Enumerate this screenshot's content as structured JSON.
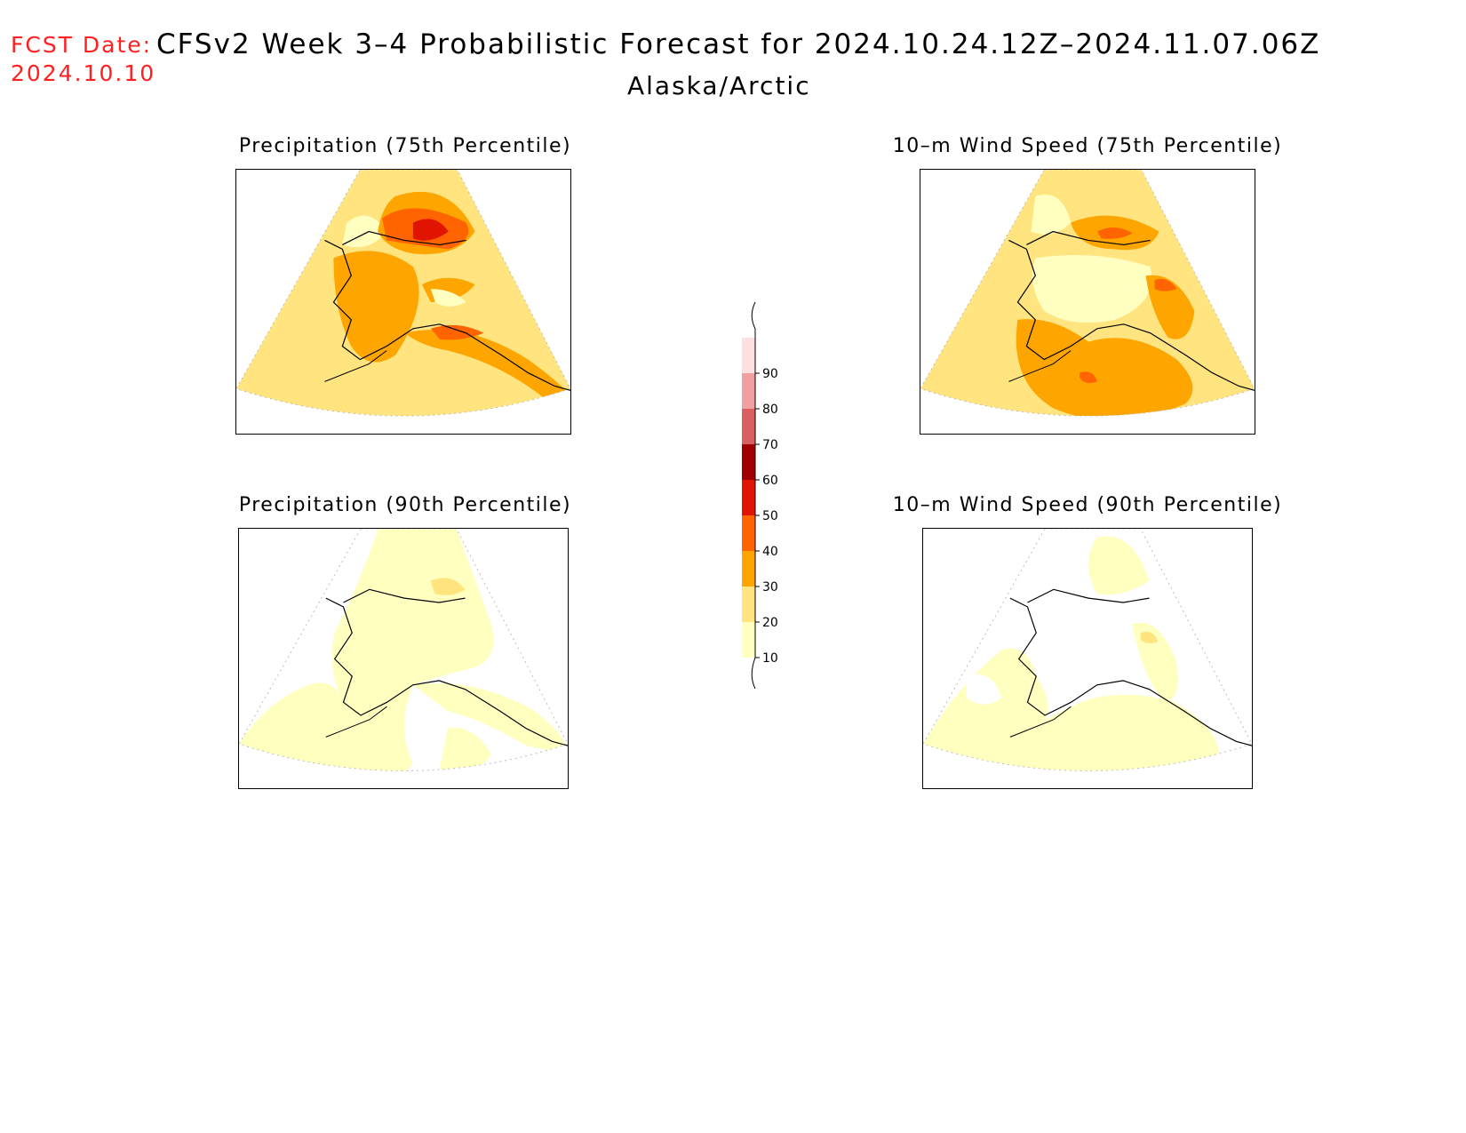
{
  "header": {
    "fcst_label": "FCST Date:",
    "fcst_date": "2024.10.10",
    "title": "CFSv2 Week 3–4 Probabilistic Forecast for 2024.10.24.12Z–2024.11.07.06Z",
    "region": "Alaska/Arctic"
  },
  "panels": [
    {
      "id": "precip-75",
      "title": "Precipitation (75th Percentile)"
    },
    {
      "id": "wind-75",
      "title": "10–m Wind Speed (75th Percentile)"
    },
    {
      "id": "precip-90",
      "title": "Precipitation (90th Percentile)"
    },
    {
      "id": "wind-90",
      "title": "10–m Wind Speed (90th Percentile)"
    }
  ],
  "legend": {
    "levels": [
      "10",
      "20",
      "30",
      "40",
      "50",
      "60",
      "70",
      "80",
      "90"
    ],
    "colors": [
      "#ffffc0",
      "#ffe480",
      "#ffa500",
      "#ff6400",
      "#e01400",
      "#a00000",
      "#d86060",
      "#f0a0a0",
      "#ffe0e0"
    ]
  }
}
